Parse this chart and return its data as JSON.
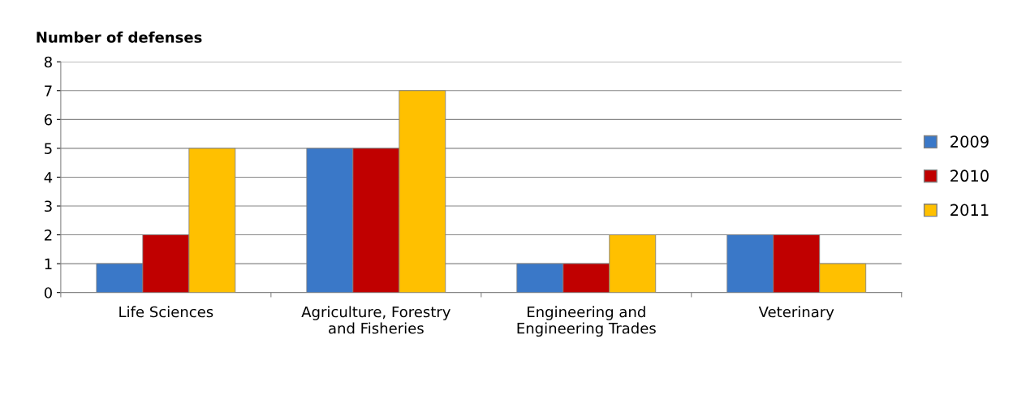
{
  "chart_data": {
    "type": "bar",
    "ylabel": "Number of defenses",
    "categories": [
      "Life Sciences",
      "Agriculture, Forestry\nand Fisheries",
      "Engineering and\nEngineering Trades",
      "Veterinary"
    ],
    "series": [
      {
        "name": "2009",
        "color": "#3a78c8",
        "values": [
          1,
          5,
          1,
          2
        ]
      },
      {
        "name": "2010",
        "color": "#c00000",
        "values": [
          2,
          5,
          1,
          2
        ]
      },
      {
        "name": "2011",
        "color": "#ffc000",
        "values": [
          5,
          7,
          2,
          1
        ]
      }
    ],
    "ylim": [
      0,
      8
    ],
    "yticks": [
      0,
      1,
      2,
      3,
      4,
      5,
      6,
      7,
      8
    ],
    "grid": "y",
    "legend": "right"
  }
}
